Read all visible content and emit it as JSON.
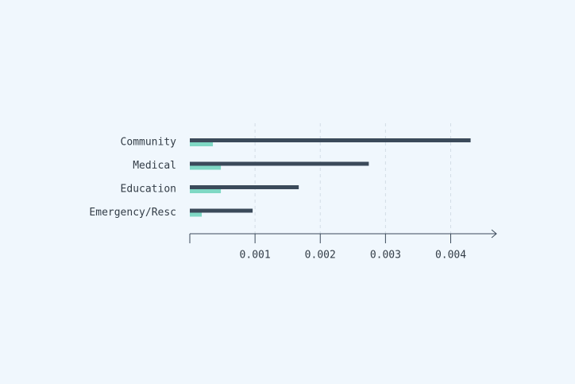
{
  "chart_data": {
    "type": "hbar",
    "categories": [
      "Community",
      "Medical",
      "Education",
      "Emergency/Resc"
    ],
    "series": [
      {
        "color": "#3b4a5a",
        "values": [
          0.004305,
          0.002744,
          0.00167,
          0.000963
        ]
      },
      {
        "color": "#7fd8c4",
        "values": [
          0.000354,
          0.000476,
          0.000476,
          0.000183
        ]
      }
    ],
    "xlim": [
      0,
      0.0047
    ],
    "xticks": [
      0.001,
      0.002,
      0.003,
      0.004
    ],
    "grid": true
  }
}
